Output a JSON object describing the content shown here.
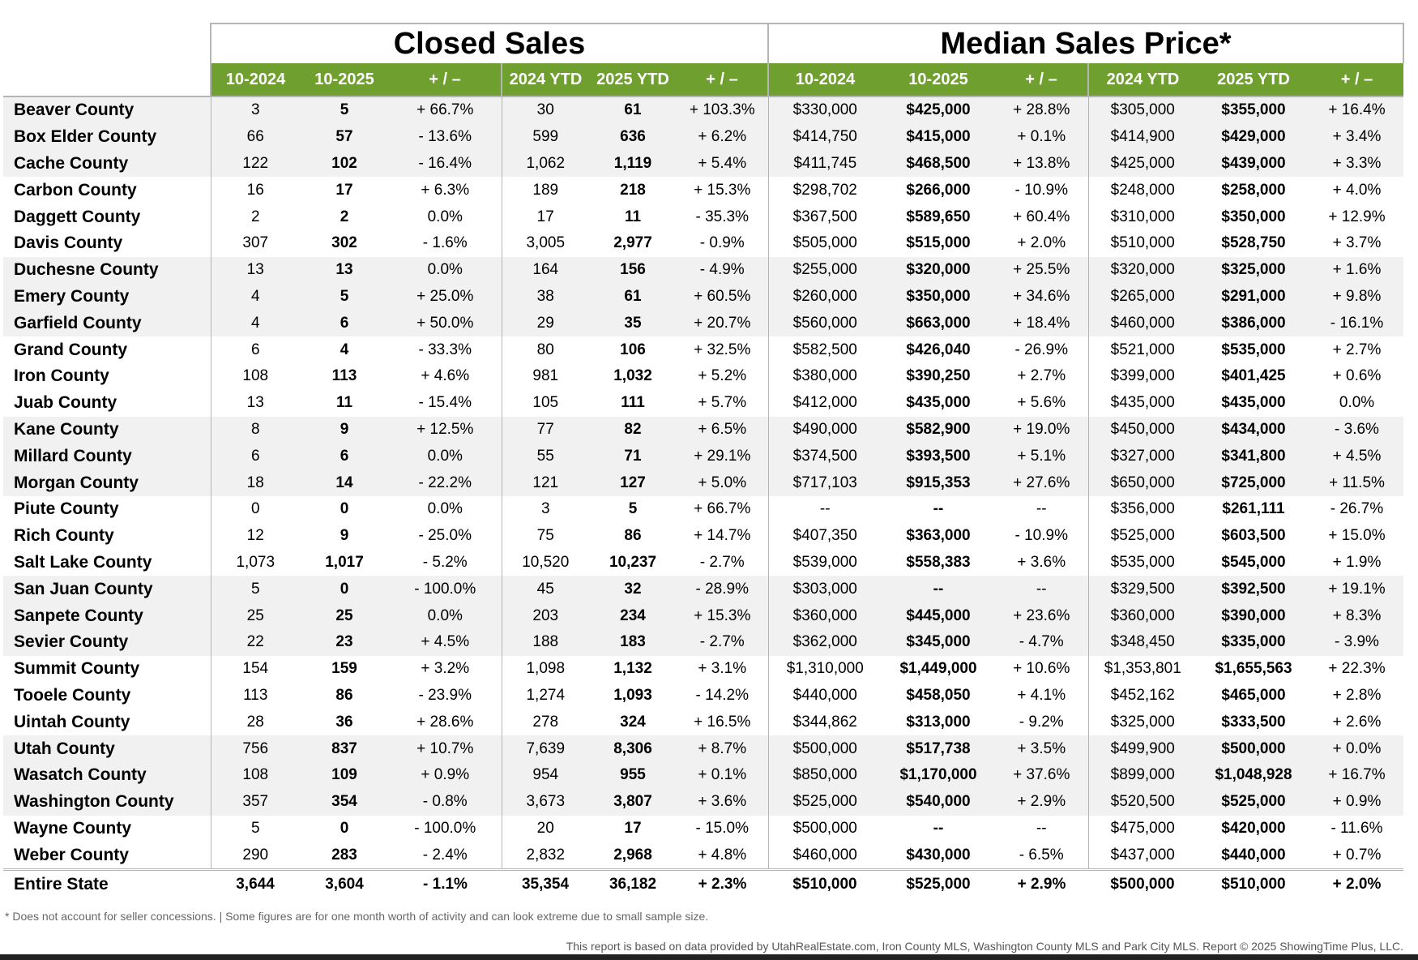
{
  "sections": {
    "closed_sales": "Closed Sales",
    "median_price": "Median Sales Price*"
  },
  "columns": [
    "10-2024",
    "10-2025",
    "+ / –",
    "2024 YTD",
    "2025 YTD",
    "+ / –",
    "10-2024",
    "10-2025",
    "+ / –",
    "2024 YTD",
    "2025 YTD",
    "+ / –"
  ],
  "accent_color": "#6f9f2e",
  "rows": [
    {
      "name": "Beaver County",
      "v": [
        "3",
        "5",
        "+ 66.7%",
        "30",
        "61",
        "+ 103.3%",
        "$330,000",
        "$425,000",
        "+ 28.8%",
        "$305,000",
        "$355,000",
        "+ 16.4%"
      ]
    },
    {
      "name": "Box Elder County",
      "v": [
        "66",
        "57",
        "- 13.6%",
        "599",
        "636",
        "+ 6.2%",
        "$414,750",
        "$415,000",
        "+ 0.1%",
        "$414,900",
        "$429,000",
        "+ 3.4%"
      ]
    },
    {
      "name": "Cache County",
      "v": [
        "122",
        "102",
        "- 16.4%",
        "1,062",
        "1,119",
        "+ 5.4%",
        "$411,745",
        "$468,500",
        "+ 13.8%",
        "$425,000",
        "$439,000",
        "+ 3.3%"
      ]
    },
    {
      "name": "Carbon County",
      "v": [
        "16",
        "17",
        "+ 6.3%",
        "189",
        "218",
        "+ 15.3%",
        "$298,702",
        "$266,000",
        "- 10.9%",
        "$248,000",
        "$258,000",
        "+ 4.0%"
      ]
    },
    {
      "name": "Daggett County",
      "v": [
        "2",
        "2",
        "0.0%",
        "17",
        "11",
        "- 35.3%",
        "$367,500",
        "$589,650",
        "+ 60.4%",
        "$310,000",
        "$350,000",
        "+ 12.9%"
      ]
    },
    {
      "name": "Davis County",
      "v": [
        "307",
        "302",
        "- 1.6%",
        "3,005",
        "2,977",
        "- 0.9%",
        "$505,000",
        "$515,000",
        "+ 2.0%",
        "$510,000",
        "$528,750",
        "+ 3.7%"
      ]
    },
    {
      "name": "Duchesne County",
      "v": [
        "13",
        "13",
        "0.0%",
        "164",
        "156",
        "- 4.9%",
        "$255,000",
        "$320,000",
        "+ 25.5%",
        "$320,000",
        "$325,000",
        "+ 1.6%"
      ]
    },
    {
      "name": "Emery County",
      "v": [
        "4",
        "5",
        "+ 25.0%",
        "38",
        "61",
        "+ 60.5%",
        "$260,000",
        "$350,000",
        "+ 34.6%",
        "$265,000",
        "$291,000",
        "+ 9.8%"
      ]
    },
    {
      "name": "Garfield County",
      "v": [
        "4",
        "6",
        "+ 50.0%",
        "29",
        "35",
        "+ 20.7%",
        "$560,000",
        "$663,000",
        "+ 18.4%",
        "$460,000",
        "$386,000",
        "- 16.1%"
      ]
    },
    {
      "name": "Grand County",
      "v": [
        "6",
        "4",
        "- 33.3%",
        "80",
        "106",
        "+ 32.5%",
        "$582,500",
        "$426,040",
        "- 26.9%",
        "$521,000",
        "$535,000",
        "+ 2.7%"
      ]
    },
    {
      "name": "Iron County",
      "v": [
        "108",
        "113",
        "+ 4.6%",
        "981",
        "1,032",
        "+ 5.2%",
        "$380,000",
        "$390,250",
        "+ 2.7%",
        "$399,000",
        "$401,425",
        "+ 0.6%"
      ]
    },
    {
      "name": "Juab County",
      "v": [
        "13",
        "11",
        "- 15.4%",
        "105",
        "111",
        "+ 5.7%",
        "$412,000",
        "$435,000",
        "+ 5.6%",
        "$435,000",
        "$435,000",
        "0.0%"
      ]
    },
    {
      "name": "Kane County",
      "v": [
        "8",
        "9",
        "+ 12.5%",
        "77",
        "82",
        "+ 6.5%",
        "$490,000",
        "$582,900",
        "+ 19.0%",
        "$450,000",
        "$434,000",
        "- 3.6%"
      ]
    },
    {
      "name": "Millard County",
      "v": [
        "6",
        "6",
        "0.0%",
        "55",
        "71",
        "+ 29.1%",
        "$374,500",
        "$393,500",
        "+ 5.1%",
        "$327,000",
        "$341,800",
        "+ 4.5%"
      ]
    },
    {
      "name": "Morgan County",
      "v": [
        "18",
        "14",
        "- 22.2%",
        "121",
        "127",
        "+ 5.0%",
        "$717,103",
        "$915,353",
        "+ 27.6%",
        "$650,000",
        "$725,000",
        "+ 11.5%"
      ]
    },
    {
      "name": "Piute County",
      "v": [
        "0",
        "0",
        "0.0%",
        "3",
        "5",
        "+ 66.7%",
        "--",
        "--",
        "--",
        "$356,000",
        "$261,111",
        "- 26.7%"
      ]
    },
    {
      "name": "Rich County",
      "v": [
        "12",
        "9",
        "- 25.0%",
        "75",
        "86",
        "+ 14.7%",
        "$407,350",
        "$363,000",
        "- 10.9%",
        "$525,000",
        "$603,500",
        "+ 15.0%"
      ]
    },
    {
      "name": "Salt Lake County",
      "v": [
        "1,073",
        "1,017",
        "- 5.2%",
        "10,520",
        "10,237",
        "- 2.7%",
        "$539,000",
        "$558,383",
        "+ 3.6%",
        "$535,000",
        "$545,000",
        "+ 1.9%"
      ]
    },
    {
      "name": "San Juan County",
      "v": [
        "5",
        "0",
        "- 100.0%",
        "45",
        "32",
        "- 28.9%",
        "$303,000",
        "--",
        "--",
        "$329,500",
        "$392,500",
        "+ 19.1%"
      ]
    },
    {
      "name": "Sanpete County",
      "v": [
        "25",
        "25",
        "0.0%",
        "203",
        "234",
        "+ 15.3%",
        "$360,000",
        "$445,000",
        "+ 23.6%",
        "$360,000",
        "$390,000",
        "+ 8.3%"
      ]
    },
    {
      "name": "Sevier County",
      "v": [
        "22",
        "23",
        "+ 4.5%",
        "188",
        "183",
        "- 2.7%",
        "$362,000",
        "$345,000",
        "- 4.7%",
        "$348,450",
        "$335,000",
        "- 3.9%"
      ]
    },
    {
      "name": "Summit County",
      "v": [
        "154",
        "159",
        "+ 3.2%",
        "1,098",
        "1,132",
        "+ 3.1%",
        "$1,310,000",
        "$1,449,000",
        "+ 10.6%",
        "$1,353,801",
        "$1,655,563",
        "+ 22.3%"
      ]
    },
    {
      "name": "Tooele County",
      "v": [
        "113",
        "86",
        "- 23.9%",
        "1,274",
        "1,093",
        "- 14.2%",
        "$440,000",
        "$458,050",
        "+ 4.1%",
        "$452,162",
        "$465,000",
        "+ 2.8%"
      ]
    },
    {
      "name": "Uintah County",
      "v": [
        "28",
        "36",
        "+ 28.6%",
        "278",
        "324",
        "+ 16.5%",
        "$344,862",
        "$313,000",
        "- 9.2%",
        "$325,000",
        "$333,500",
        "+ 2.6%"
      ]
    },
    {
      "name": "Utah County",
      "v": [
        "756",
        "837",
        "+ 10.7%",
        "7,639",
        "8,306",
        "+ 8.7%",
        "$500,000",
        "$517,738",
        "+ 3.5%",
        "$499,900",
        "$500,000",
        "+ 0.0%"
      ]
    },
    {
      "name": "Wasatch County",
      "v": [
        "108",
        "109",
        "+ 0.9%",
        "954",
        "955",
        "+ 0.1%",
        "$850,000",
        "$1,170,000",
        "+ 37.6%",
        "$899,000",
        "$1,048,928",
        "+ 16.7%"
      ]
    },
    {
      "name": "Washington County",
      "v": [
        "357",
        "354",
        "- 0.8%",
        "3,673",
        "3,807",
        "+ 3.6%",
        "$525,000",
        "$540,000",
        "+ 2.9%",
        "$520,500",
        "$525,000",
        "+ 0.9%"
      ]
    },
    {
      "name": "Wayne County",
      "v": [
        "5",
        "0",
        "- 100.0%",
        "20",
        "17",
        "- 15.0%",
        "$500,000",
        "--",
        "--",
        "$475,000",
        "$420,000",
        "- 11.6%"
      ]
    },
    {
      "name": "Weber County",
      "v": [
        "290",
        "283",
        "- 2.4%",
        "2,832",
        "2,968",
        "+ 4.8%",
        "$460,000",
        "$430,000",
        "- 6.5%",
        "$437,000",
        "$440,000",
        "+ 0.7%"
      ]
    }
  ],
  "total": {
    "name": "Entire State",
    "v": [
      "3,644",
      "3,604",
      "- 1.1%",
      "35,354",
      "36,182",
      "+ 2.3%",
      "$510,000",
      "$525,000",
      "+ 2.9%",
      "$500,000",
      "$510,000",
      "+ 2.0%"
    ]
  },
  "footnote": "* Does not account for seller concessions. | Some figures are for one month worth of activity and can look extreme due to small sample size.",
  "source": "This report is based on data provided by UtahRealEstate.com, Iron County MLS, Washington County MLS and Park City MLS. Report © 2025 ShowingTime Plus, LLC."
}
